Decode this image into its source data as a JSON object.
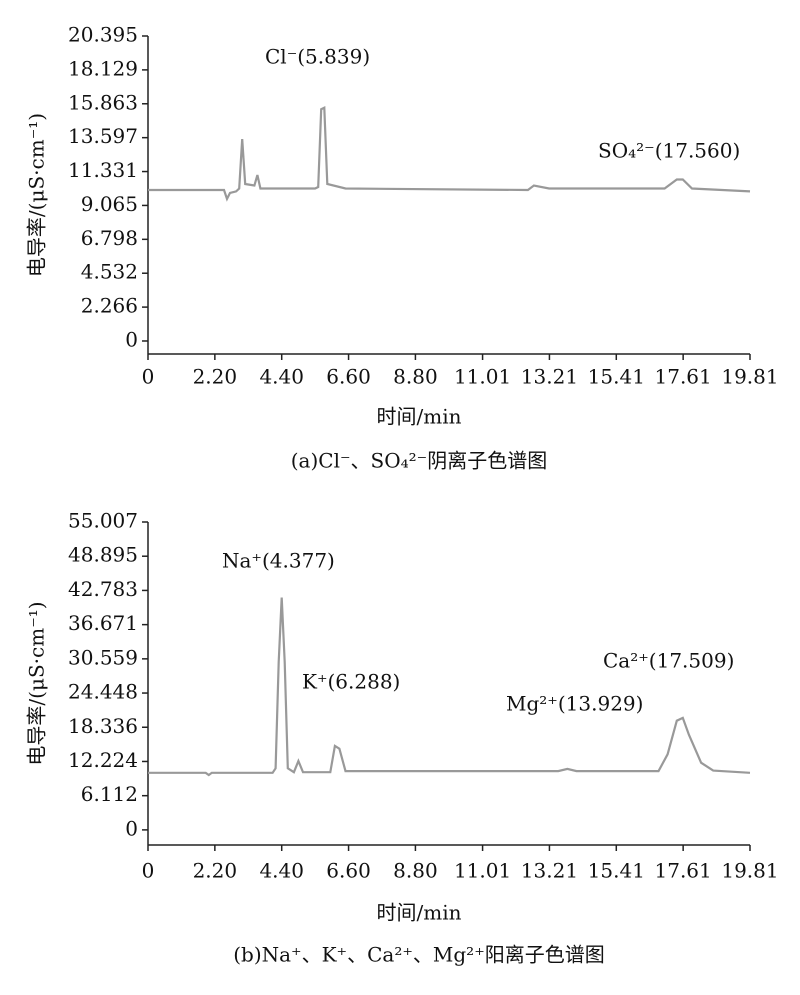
{
  "chart_data": [
    {
      "type": "line",
      "color": "#999999",
      "y_label": "电导率/(μS·cm⁻¹)",
      "x_label": "时间/min",
      "caption": "(a)Cl⁻、SO₄²⁻阴离子色谱图",
      "annotations": [
        "Cl⁻(5.839)",
        "SO₄²⁻(17.560)"
      ],
      "x": [
        0,
        2.5,
        2.6,
        2.7,
        2.9,
        3.0,
        3.1,
        3.2,
        3.5,
        3.6,
        3.7,
        5.5,
        5.6,
        5.7,
        5.8,
        5.9,
        6.5,
        12.5,
        12.7,
        13.2,
        17.0,
        17.4,
        17.6,
        17.9,
        19.81
      ],
      "values": [
        10.1,
        10.1,
        9.5,
        9.9,
        10.0,
        10.2,
        13.5,
        10.5,
        10.4,
        11.1,
        10.2,
        10.2,
        10.3,
        15.5,
        15.6,
        10.5,
        10.2,
        10.1,
        10.4,
        10.2,
        10.2,
        10.8,
        10.8,
        10.2,
        10.0
      ],
      "xlim": [
        0,
        19.81
      ],
      "xticks": [
        0,
        {
          "value": 2.2,
          "label": "2.20"
        },
        {
          "value": 4.4,
          "label": "4.40"
        },
        {
          "value": 6.6,
          "label": "6.60"
        },
        {
          "value": 8.8,
          "label": "8.80"
        },
        11.01,
        13.21,
        15.41,
        17.61,
        19.81
      ],
      "ylim": [
        -0.87,
        20.395
      ],
      "yticks": [
        0,
        2.266,
        4.532,
        6.798,
        9.065,
        11.331,
        13.597,
        15.863,
        18.129,
        20.395
      ]
    },
    {
      "type": "line",
      "color": "#999999",
      "y_label": "电导率/(μS·cm⁻¹)",
      "x_label": "时间/min",
      "caption": "(b)Na⁺、K⁺、Ca²⁺、Mg²⁺阳离子色谱图",
      "annotations": [
        "Na⁺(4.377)",
        "K⁺(6.288)",
        "Mg²⁺(13.929)",
        "Ca²⁺(17.509)"
      ],
      "x": [
        0,
        1.9,
        2.0,
        2.1,
        4.1,
        4.2,
        4.3,
        4.4,
        4.5,
        4.6,
        4.8,
        4.95,
        5.1,
        6.0,
        6.15,
        6.3,
        6.5,
        13.5,
        13.8,
        14.1,
        16.8,
        17.1,
        17.4,
        17.6,
        17.8,
        18.2,
        18.6,
        19.81
      ],
      "values": [
        10.2,
        10.2,
        9.8,
        10.2,
        10.2,
        11.0,
        30.0,
        41.5,
        30.0,
        11.0,
        10.3,
        12.3,
        10.3,
        10.3,
        15.0,
        14.5,
        10.5,
        10.5,
        10.9,
        10.5,
        10.5,
        13.5,
        19.5,
        20.0,
        17.0,
        12.0,
        10.6,
        10.2
      ],
      "xlim": [
        0,
        19.81
      ],
      "xticks": [
        0,
        {
          "value": 2.2,
          "label": "2.20"
        },
        {
          "value": 4.4,
          "label": "4.40"
        },
        {
          "value": 6.6,
          "label": "6.60"
        },
        {
          "value": 8.8,
          "label": "8.80"
        },
        11.01,
        13.21,
        15.41,
        17.61,
        19.81
      ],
      "ylim": [
        -2.7,
        55.007
      ],
      "yticks": [
        0,
        6.112,
        12.224,
        18.336,
        24.448,
        30.559,
        36.671,
        42.783,
        48.895,
        55.007
      ]
    }
  ]
}
